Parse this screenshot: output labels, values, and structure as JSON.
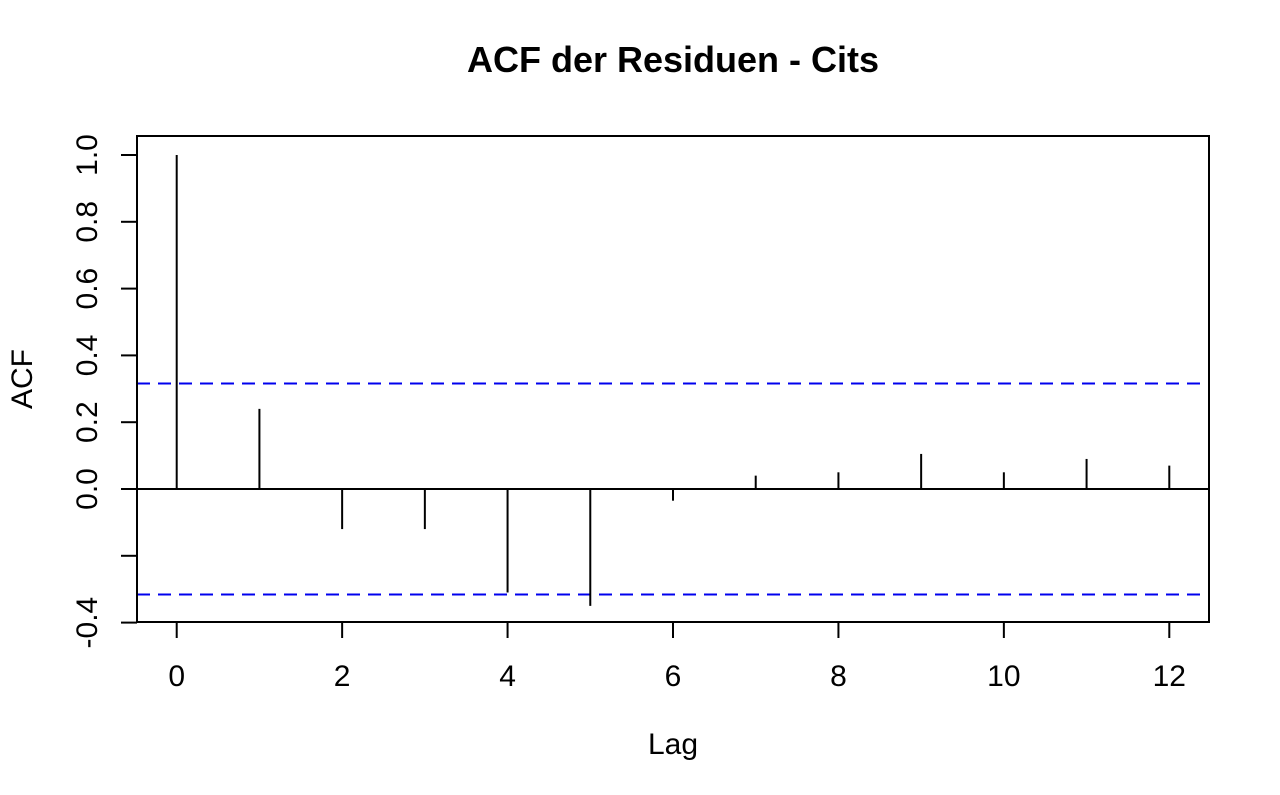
{
  "title": "ACF der Residuen - Cits",
  "chart_data": {
    "type": "stem",
    "title": "ACF der Residuen - Cits",
    "xlabel": "Lag",
    "ylabel": "ACF",
    "x": [
      0,
      1,
      2,
      3,
      4,
      5,
      6,
      7,
      8,
      9,
      10,
      11,
      12
    ],
    "values": [
      1.0,
      0.24,
      -0.12,
      -0.12,
      -0.31,
      -0.35,
      -0.035,
      0.04,
      0.05,
      0.105,
      0.05,
      0.09,
      0.07
    ],
    "confidence_upper": 0.316,
    "confidence_lower": -0.316,
    "confidence_line_style": "dashed",
    "xlim": [
      -0.48,
      12.48
    ],
    "ylim": [
      -0.4,
      1.06
    ],
    "xticks": [
      {
        "value": 0,
        "label": "0"
      },
      {
        "value": 2,
        "label": "2"
      },
      {
        "value": 4,
        "label": "4"
      },
      {
        "value": 6,
        "label": "6"
      },
      {
        "value": 8,
        "label": "8"
      },
      {
        "value": 10,
        "label": "10"
      },
      {
        "value": 12,
        "label": "12"
      }
    ],
    "yticks": [
      {
        "value": -0.4,
        "label": "-0.4"
      },
      {
        "value": -0.2,
        "label": ""
      },
      {
        "value": 0.0,
        "label": "0.0"
      },
      {
        "value": 0.2,
        "label": "0.2"
      },
      {
        "value": 0.4,
        "label": "0.4"
      },
      {
        "value": 0.6,
        "label": "0.6"
      },
      {
        "value": 0.8,
        "label": "0.8"
      },
      {
        "value": 1.0,
        "label": "1.0"
      }
    ],
    "grid": false,
    "legend": false,
    "colors": {
      "stem": "#000000",
      "axis": "#000000",
      "confidence": "#0000EE",
      "background": "#FFFFFF"
    }
  }
}
